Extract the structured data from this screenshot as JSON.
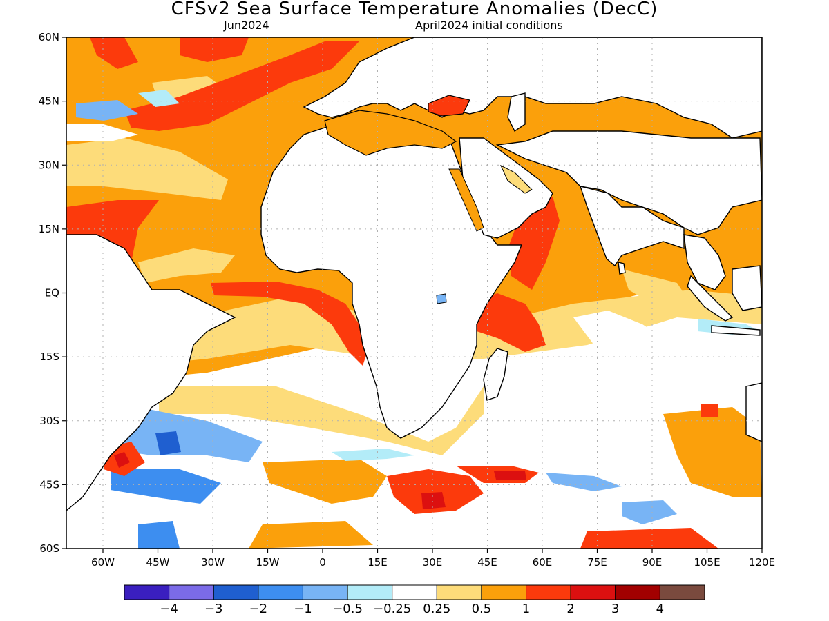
{
  "title": "CFSv2 Sea Surface Temperature Anomalies (DecC)",
  "valid_month": "Jun2024",
  "init_label": "April2024 initial conditions",
  "colors": {
    "ocean_white": "#ffffff",
    "land": "#ffffff",
    "coast": "#000000",
    "grid": "#b0b0b0"
  },
  "chart_data": {
    "type": "heatmap",
    "title": "CFSv2 Sea Surface Temperature Anomalies (DecC)",
    "lon_range": [
      -70,
      120
    ],
    "lat_range": [
      -60,
      60
    ],
    "x_ticks": [
      "60W",
      "45W",
      "30W",
      "15W",
      "0",
      "15E",
      "30E",
      "45E",
      "60E",
      "75E",
      "90E",
      "105E",
      "120E"
    ],
    "x_tick_values": [
      -60,
      -45,
      -30,
      -15,
      0,
      15,
      30,
      45,
      60,
      75,
      90,
      105,
      120
    ],
    "y_ticks": [
      "60N",
      "45N",
      "30N",
      "15N",
      "EQ",
      "15S",
      "30S",
      "45S",
      "60S"
    ],
    "y_tick_values": [
      60,
      45,
      30,
      15,
      0,
      -15,
      -30,
      -45,
      -60
    ],
    "grid": "dotted",
    "colorbar": {
      "levels": [
        "−4",
        "−3",
        "−2",
        "−1",
        "−0.5",
        "−0.25",
        "0.25",
        "0.5",
        "1",
        "2",
        "3",
        "4"
      ],
      "colors": [
        "#3a1fbf",
        "#7b6be8",
        "#1f5fd0",
        "#3d8ef0",
        "#78b4f5",
        "#b3ecf8",
        "#ffffff",
        "#fddc7a",
        "#fba00b",
        "#fc3a0c",
        "#dc1010",
        "#a20000",
        "#7a4a3e"
      ]
    },
    "regions": [
      {
        "label": "Warm subtropical North Atlantic",
        "anomaly": 1
      },
      {
        "label": "Warm Arabian Sea / western Indian Ocean",
        "anomaly": 2
      },
      {
        "label": "Warm eastern tropical Atlantic",
        "anomaly": 2
      },
      {
        "label": "Cool southwest Atlantic",
        "anomaly": -1
      },
      {
        "label": "Warm Southern Ocean band ~45S",
        "anomaly": 2
      }
    ]
  }
}
